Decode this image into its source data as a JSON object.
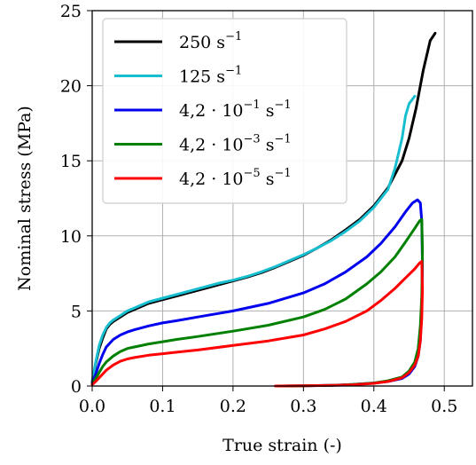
{
  "chart_data": {
    "type": "line",
    "xlabel": "True strain (-)",
    "ylabel": "Nominal stress (MPa)",
    "xlim": [
      0.0,
      0.54
    ],
    "ylim": [
      0,
      25
    ],
    "xticks": [
      0.0,
      0.1,
      0.2,
      0.3,
      0.4,
      0.5
    ],
    "xtick_labels": [
      "0.0",
      "0.1",
      "0.2",
      "0.3",
      "0.4",
      "0.5"
    ],
    "yticks": [
      0,
      5,
      10,
      15,
      20,
      25
    ],
    "ytick_labels": [
      "0",
      "5",
      "10",
      "15",
      "20",
      "25"
    ],
    "grid": true,
    "legend_position": "top-left",
    "series": [
      {
        "name": "250 s⁻¹",
        "label_main": "250 s",
        "label_exp": "−1",
        "color": "#000000",
        "points": [
          [
            0.0,
            0.3
          ],
          [
            0.005,
            1.5
          ],
          [
            0.01,
            2.5
          ],
          [
            0.015,
            3.2
          ],
          [
            0.02,
            3.8
          ],
          [
            0.025,
            4.1
          ],
          [
            0.03,
            4.3
          ],
          [
            0.04,
            4.6
          ],
          [
            0.05,
            4.9
          ],
          [
            0.06,
            5.1
          ],
          [
            0.08,
            5.5
          ],
          [
            0.1,
            5.75
          ],
          [
            0.12,
            6.0
          ],
          [
            0.14,
            6.25
          ],
          [
            0.16,
            6.5
          ],
          [
            0.18,
            6.75
          ],
          [
            0.2,
            7.0
          ],
          [
            0.22,
            7.25
          ],
          [
            0.24,
            7.55
          ],
          [
            0.26,
            7.9
          ],
          [
            0.28,
            8.3
          ],
          [
            0.3,
            8.7
          ],
          [
            0.32,
            9.2
          ],
          [
            0.34,
            9.75
          ],
          [
            0.36,
            10.4
          ],
          [
            0.38,
            11.1
          ],
          [
            0.4,
            12.0
          ],
          [
            0.42,
            13.2
          ],
          [
            0.44,
            15.0
          ],
          [
            0.45,
            16.5
          ],
          [
            0.46,
            18.5
          ],
          [
            0.47,
            21.0
          ],
          [
            0.48,
            23.0
          ],
          [
            0.487,
            23.5
          ]
        ]
      },
      {
        "name": "125 s⁻¹",
        "label_main": "125 s",
        "label_exp": "−1",
        "color": "#17becf",
        "points": [
          [
            0.0,
            0.3
          ],
          [
            0.005,
            1.6
          ],
          [
            0.01,
            2.7
          ],
          [
            0.015,
            3.4
          ],
          [
            0.02,
            3.9
          ],
          [
            0.025,
            4.2
          ],
          [
            0.03,
            4.4
          ],
          [
            0.04,
            4.7
          ],
          [
            0.05,
            5.0
          ],
          [
            0.06,
            5.2
          ],
          [
            0.08,
            5.6
          ],
          [
            0.1,
            5.85
          ],
          [
            0.12,
            6.1
          ],
          [
            0.14,
            6.35
          ],
          [
            0.16,
            6.6
          ],
          [
            0.18,
            6.85
          ],
          [
            0.2,
            7.05
          ],
          [
            0.22,
            7.3
          ],
          [
            0.24,
            7.6
          ],
          [
            0.26,
            7.95
          ],
          [
            0.28,
            8.35
          ],
          [
            0.3,
            8.75
          ],
          [
            0.32,
            9.2
          ],
          [
            0.34,
            9.7
          ],
          [
            0.36,
            10.3
          ],
          [
            0.38,
            11.0
          ],
          [
            0.4,
            11.9
          ],
          [
            0.42,
            13.1
          ],
          [
            0.43,
            14.5
          ],
          [
            0.44,
            16.5
          ],
          [
            0.445,
            18.0
          ],
          [
            0.45,
            18.8
          ],
          [
            0.458,
            19.3
          ]
        ]
      },
      {
        "name": "4,2·10⁻¹ s⁻¹",
        "label_main": "4,2 · 10",
        "label_exp": "−1",
        "label_unit": " s",
        "label_exp2": "−1",
        "color": "#0000ee",
        "points": [
          [
            0.0,
            0.2
          ],
          [
            0.005,
            0.8
          ],
          [
            0.01,
            1.5
          ],
          [
            0.015,
            2.1
          ],
          [
            0.02,
            2.6
          ],
          [
            0.03,
            3.1
          ],
          [
            0.04,
            3.4
          ],
          [
            0.05,
            3.6
          ],
          [
            0.06,
            3.75
          ],
          [
            0.08,
            4.0
          ],
          [
            0.1,
            4.2
          ],
          [
            0.12,
            4.35
          ],
          [
            0.15,
            4.6
          ],
          [
            0.2,
            5.0
          ],
          [
            0.25,
            5.5
          ],
          [
            0.3,
            6.2
          ],
          [
            0.33,
            6.8
          ],
          [
            0.36,
            7.6
          ],
          [
            0.39,
            8.6
          ],
          [
            0.41,
            9.5
          ],
          [
            0.43,
            10.6
          ],
          [
            0.445,
            11.6
          ],
          [
            0.455,
            12.2
          ],
          [
            0.462,
            12.4
          ],
          [
            0.466,
            12.2
          ],
          [
            0.468,
            11.0
          ],
          [
            0.469,
            8.0
          ],
          [
            0.468,
            5.0
          ],
          [
            0.466,
            3.0
          ],
          [
            0.463,
            2.0
          ],
          [
            0.458,
            1.3
          ],
          [
            0.45,
            0.8
          ],
          [
            0.44,
            0.5
          ],
          [
            0.42,
            0.3
          ],
          [
            0.4,
            0.2
          ],
          [
            0.37,
            0.1
          ],
          [
            0.34,
            0.05
          ],
          [
            0.3,
            0.02
          ],
          [
            0.27,
            0.0
          ]
        ]
      },
      {
        "name": "4,2·10⁻³ s⁻¹",
        "label_main": "4,2 · 10",
        "label_exp": "−3",
        "label_unit": " s",
        "label_exp2": "−1",
        "color": "#008000",
        "points": [
          [
            0.0,
            0.15
          ],
          [
            0.005,
            0.5
          ],
          [
            0.01,
            0.9
          ],
          [
            0.015,
            1.3
          ],
          [
            0.02,
            1.6
          ],
          [
            0.03,
            2.0
          ],
          [
            0.04,
            2.3
          ],
          [
            0.05,
            2.5
          ],
          [
            0.06,
            2.6
          ],
          [
            0.08,
            2.8
          ],
          [
            0.1,
            2.95
          ],
          [
            0.12,
            3.1
          ],
          [
            0.15,
            3.3
          ],
          [
            0.2,
            3.65
          ],
          [
            0.25,
            4.05
          ],
          [
            0.3,
            4.6
          ],
          [
            0.33,
            5.1
          ],
          [
            0.36,
            5.8
          ],
          [
            0.39,
            6.8
          ],
          [
            0.41,
            7.6
          ],
          [
            0.43,
            8.6
          ],
          [
            0.445,
            9.6
          ],
          [
            0.458,
            10.5
          ],
          [
            0.465,
            11.0
          ],
          [
            0.468,
            11.1
          ],
          [
            0.469,
            9.0
          ],
          [
            0.468,
            6.0
          ],
          [
            0.466,
            4.0
          ],
          [
            0.463,
            2.5
          ],
          [
            0.458,
            1.6
          ],
          [
            0.45,
            1.0
          ],
          [
            0.44,
            0.6
          ],
          [
            0.42,
            0.35
          ],
          [
            0.4,
            0.2
          ],
          [
            0.37,
            0.1
          ],
          [
            0.34,
            0.05
          ],
          [
            0.3,
            0.02
          ],
          [
            0.27,
            0.0
          ]
        ]
      },
      {
        "name": "4,2·10⁻⁵ s⁻¹",
        "label_main": "4,2 · 10",
        "label_exp": "−5",
        "label_unit": " s",
        "label_exp2": "−1",
        "color": "#ff0000",
        "points": [
          [
            0.0,
            0.1
          ],
          [
            0.005,
            0.3
          ],
          [
            0.01,
            0.55
          ],
          [
            0.015,
            0.8
          ],
          [
            0.02,
            1.05
          ],
          [
            0.03,
            1.4
          ],
          [
            0.04,
            1.65
          ],
          [
            0.05,
            1.8
          ],
          [
            0.06,
            1.9
          ],
          [
            0.08,
            2.05
          ],
          [
            0.1,
            2.15
          ],
          [
            0.12,
            2.25
          ],
          [
            0.15,
            2.4
          ],
          [
            0.2,
            2.7
          ],
          [
            0.25,
            3.0
          ],
          [
            0.3,
            3.4
          ],
          [
            0.33,
            3.8
          ],
          [
            0.36,
            4.3
          ],
          [
            0.39,
            5.0
          ],
          [
            0.41,
            5.7
          ],
          [
            0.43,
            6.5
          ],
          [
            0.445,
            7.2
          ],
          [
            0.458,
            7.8
          ],
          [
            0.465,
            8.2
          ],
          [
            0.468,
            8.3
          ],
          [
            0.469,
            6.5
          ],
          [
            0.468,
            4.5
          ],
          [
            0.466,
            3.0
          ],
          [
            0.463,
            2.0
          ],
          [
            0.458,
            1.4
          ],
          [
            0.45,
            0.9
          ],
          [
            0.44,
            0.55
          ],
          [
            0.42,
            0.3
          ],
          [
            0.4,
            0.18
          ],
          [
            0.37,
            0.08
          ],
          [
            0.34,
            0.04
          ],
          [
            0.3,
            0.02
          ],
          [
            0.26,
            0.0
          ]
        ]
      }
    ]
  }
}
